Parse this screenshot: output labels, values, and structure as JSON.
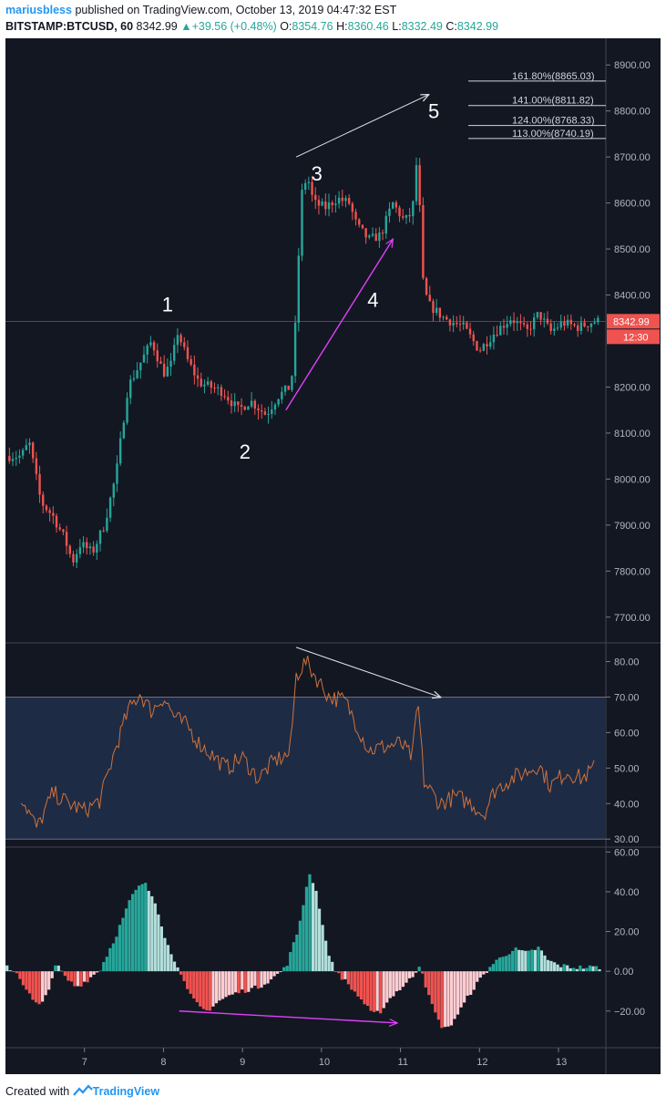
{
  "header": {
    "username": "mariusbless",
    "published_text": "published on TradingView.com, October 13, 2019 04:47:32 EST",
    "symbol": "BITSTAMP:BTCUSD, 60",
    "last_price": "8342.99",
    "change": "+39.56 (+0.48%)",
    "open_label": "O:",
    "open_value": "8354.76",
    "high_label": "H:",
    "high_value": "8360.46",
    "low_label": "L:",
    "low_value": "8332.49",
    "close_label": "C:",
    "close_value": "8342.99"
  },
  "footer": {
    "created_with": "Created with",
    "brand": "TradingView"
  },
  "colors": {
    "up": "#26a69a",
    "down": "#ef5350",
    "up_light": "#b2dfdb",
    "down_light": "#ffcdd2",
    "background": "#131722",
    "rsi_line": "#d0723a",
    "rsi_band": "#1e2b45",
    "annotation": "#e040fb"
  },
  "chart_data": [
    {
      "type": "candlestick",
      "y_axis_ticks": [
        "8900.00",
        "8800.00",
        "8700.00",
        "8600.00",
        "8500.00",
        "8400.00",
        "8200.00",
        "8100.00",
        "8000.00",
        "7900.00",
        "7800.00",
        "7700.00"
      ],
      "ylim": [
        7650,
        8950
      ],
      "x_axis_ticks": [
        "7",
        "8",
        "9",
        "10",
        "11",
        "12",
        "13"
      ],
      "last_price_label": "8342.99",
      "countdown_label": "12:30",
      "wave_labels": [
        "1",
        "2",
        "3",
        "4",
        "5"
      ],
      "fib_levels": [
        {
          "label": "161.80%(8865.03)",
          "value": 8865.03
        },
        {
          "label": "141.00%(8811.82)",
          "value": 8811.82
        },
        {
          "label": "124.00%(8768.33)",
          "value": 8768.33
        },
        {
          "label": "113.00%(8740.19)",
          "value": 8740.19
        }
      ],
      "path_keypoints": [
        {
          "x": 6.2,
          "y": 8050
        },
        {
          "x": 6.3,
          "y": 8080
        },
        {
          "x": 6.45,
          "y": 7950
        },
        {
          "x": 6.6,
          "y": 7920
        },
        {
          "x": 6.75,
          "y": 7870
        },
        {
          "x": 6.85,
          "y": 7820
        },
        {
          "x": 6.95,
          "y": 7860
        },
        {
          "x": 7.1,
          "y": 7840
        },
        {
          "x": 7.25,
          "y": 7900
        },
        {
          "x": 7.4,
          "y": 8010
        },
        {
          "x": 7.55,
          "y": 8200
        },
        {
          "x": 7.7,
          "y": 8250
        },
        {
          "x": 7.85,
          "y": 8300
        },
        {
          "x": 8.0,
          "y": 8230
        },
        {
          "x": 8.1,
          "y": 8250
        },
        {
          "x": 8.18,
          "y": 8320
        },
        {
          "x": 8.3,
          "y": 8260
        },
        {
          "x": 8.45,
          "y": 8210
        },
        {
          "x": 8.6,
          "y": 8200
        },
        {
          "x": 8.75,
          "y": 8190
        },
        {
          "x": 8.95,
          "y": 8150
        },
        {
          "x": 9.1,
          "y": 8170
        },
        {
          "x": 9.3,
          "y": 8140
        },
        {
          "x": 9.45,
          "y": 8180
        },
        {
          "x": 9.6,
          "y": 8200
        },
        {
          "x": 9.65,
          "y": 8250
        },
        {
          "x": 9.68,
          "y": 8380
        },
        {
          "x": 9.75,
          "y": 8620
        },
        {
          "x": 9.82,
          "y": 8660
        },
        {
          "x": 9.9,
          "y": 8600
        },
        {
          "x": 10.05,
          "y": 8590
        },
        {
          "x": 10.2,
          "y": 8610
        },
        {
          "x": 10.35,
          "y": 8600
        },
        {
          "x": 10.45,
          "y": 8550
        },
        {
          "x": 10.6,
          "y": 8520
        },
        {
          "x": 10.75,
          "y": 8530
        },
        {
          "x": 10.9,
          "y": 8600
        },
        {
          "x": 11.05,
          "y": 8560
        },
        {
          "x": 11.15,
          "y": 8580
        },
        {
          "x": 11.22,
          "y": 8720
        },
        {
          "x": 11.27,
          "y": 8440
        },
        {
          "x": 11.35,
          "y": 8380
        },
        {
          "x": 11.55,
          "y": 8350
        },
        {
          "x": 11.8,
          "y": 8330
        },
        {
          "x": 12.0,
          "y": 8280
        },
        {
          "x": 12.2,
          "y": 8320
        },
        {
          "x": 12.4,
          "y": 8350
        },
        {
          "x": 12.6,
          "y": 8320
        },
        {
          "x": 12.75,
          "y": 8360
        },
        {
          "x": 12.9,
          "y": 8320
        },
        {
          "x": 13.05,
          "y": 8340
        },
        {
          "x": 13.25,
          "y": 8330
        },
        {
          "x": 13.45,
          "y": 8343
        }
      ]
    },
    {
      "type": "line",
      "y_axis_ticks": [
        "80.00",
        "70.00",
        "60.00",
        "50.00",
        "40.00",
        "30.00"
      ],
      "ylim": [
        28,
        85
      ],
      "band": [
        30,
        70
      ],
      "keypoints": [
        {
          "x": 6.2,
          "y": 42
        },
        {
          "x": 6.4,
          "y": 33
        },
        {
          "x": 6.6,
          "y": 43
        },
        {
          "x": 6.8,
          "y": 40
        },
        {
          "x": 7.0,
          "y": 38
        },
        {
          "x": 7.2,
          "y": 41
        },
        {
          "x": 7.4,
          "y": 56
        },
        {
          "x": 7.55,
          "y": 66
        },
        {
          "x": 7.7,
          "y": 71
        },
        {
          "x": 7.85,
          "y": 66
        },
        {
          "x": 8.0,
          "y": 70
        },
        {
          "x": 8.15,
          "y": 64
        },
        {
          "x": 8.3,
          "y": 62
        },
        {
          "x": 8.45,
          "y": 57
        },
        {
          "x": 8.6,
          "y": 54
        },
        {
          "x": 8.8,
          "y": 50
        },
        {
          "x": 9.0,
          "y": 53
        },
        {
          "x": 9.2,
          "y": 47
        },
        {
          "x": 9.4,
          "y": 52
        },
        {
          "x": 9.6,
          "y": 54
        },
        {
          "x": 9.68,
          "y": 76
        },
        {
          "x": 9.8,
          "y": 80
        },
        {
          "x": 9.95,
          "y": 75
        },
        {
          "x": 10.1,
          "y": 70
        },
        {
          "x": 10.3,
          "y": 69
        },
        {
          "x": 10.45,
          "y": 62
        },
        {
          "x": 10.6,
          "y": 55
        },
        {
          "x": 10.8,
          "y": 56
        },
        {
          "x": 11.0,
          "y": 57
        },
        {
          "x": 11.15,
          "y": 53
        },
        {
          "x": 11.22,
          "y": 69
        },
        {
          "x": 11.3,
          "y": 46
        },
        {
          "x": 11.5,
          "y": 40
        },
        {
          "x": 11.7,
          "y": 42
        },
        {
          "x": 11.9,
          "y": 40
        },
        {
          "x": 12.05,
          "y": 37
        },
        {
          "x": 12.2,
          "y": 44
        },
        {
          "x": 12.4,
          "y": 47
        },
        {
          "x": 12.6,
          "y": 49
        },
        {
          "x": 12.75,
          "y": 51
        },
        {
          "x": 12.9,
          "y": 45
        },
        {
          "x": 13.1,
          "y": 49
        },
        {
          "x": 13.3,
          "y": 47
        },
        {
          "x": 13.45,
          "y": 50
        }
      ]
    },
    {
      "type": "bar",
      "y_axis_ticks": [
        "60.00",
        "40.00",
        "20.00",
        "0.00",
        "−20.00"
      ],
      "ylim": [
        -38,
        62
      ],
      "keypoints": [
        {
          "x": 6.0,
          "y": 3
        },
        {
          "x": 6.15,
          "y": -1
        },
        {
          "x": 6.35,
          "y": -15
        },
        {
          "x": 6.45,
          "y": -18
        },
        {
          "x": 6.55,
          "y": -8
        },
        {
          "x": 6.65,
          "y": 4
        },
        {
          "x": 6.75,
          "y": -3
        },
        {
          "x": 6.9,
          "y": -8
        },
        {
          "x": 7.05,
          "y": -4
        },
        {
          "x": 7.2,
          "y": 1
        },
        {
          "x": 7.4,
          "y": 18
        },
        {
          "x": 7.6,
          "y": 38
        },
        {
          "x": 7.75,
          "y": 45
        },
        {
          "x": 7.9,
          "y": 35
        },
        {
          "x": 8.0,
          "y": 20
        },
        {
          "x": 8.1,
          "y": 8
        },
        {
          "x": 8.2,
          "y": 2
        },
        {
          "x": 8.3,
          "y": -10
        },
        {
          "x": 8.45,
          "y": -18
        },
        {
          "x": 8.55,
          "y": -20
        },
        {
          "x": 8.7,
          "y": -15
        },
        {
          "x": 8.85,
          "y": -12
        },
        {
          "x": 9.0,
          "y": -10
        },
        {
          "x": 9.2,
          "y": -8
        },
        {
          "x": 9.4,
          "y": -3
        },
        {
          "x": 9.55,
          "y": 2
        },
        {
          "x": 9.7,
          "y": 20
        },
        {
          "x": 9.85,
          "y": 50
        },
        {
          "x": 9.95,
          "y": 38
        },
        {
          "x": 10.05,
          "y": 15
        },
        {
          "x": 10.15,
          "y": 2
        },
        {
          "x": 10.3,
          "y": -5
        },
        {
          "x": 10.5,
          "y": -14
        },
        {
          "x": 10.65,
          "y": -22
        },
        {
          "x": 10.75,
          "y": -20
        },
        {
          "x": 10.9,
          "y": -12
        },
        {
          "x": 11.05,
          "y": -7
        },
        {
          "x": 11.15,
          "y": -3
        },
        {
          "x": 11.25,
          "y": 4
        },
        {
          "x": 11.35,
          "y": -12
        },
        {
          "x": 11.5,
          "y": -27
        },
        {
          "x": 11.6,
          "y": -29
        },
        {
          "x": 11.75,
          "y": -20
        },
        {
          "x": 11.9,
          "y": -10
        },
        {
          "x": 12.05,
          "y": -2
        },
        {
          "x": 12.15,
          "y": 3
        },
        {
          "x": 12.3,
          "y": 8
        },
        {
          "x": 12.45,
          "y": 11
        },
        {
          "x": 12.6,
          "y": 9
        },
        {
          "x": 12.75,
          "y": 12
        },
        {
          "x": 12.85,
          "y": 6
        },
        {
          "x": 13.0,
          "y": 3
        },
        {
          "x": 13.2,
          "y": 2
        },
        {
          "x": 13.5,
          "y": 2
        }
      ]
    }
  ]
}
